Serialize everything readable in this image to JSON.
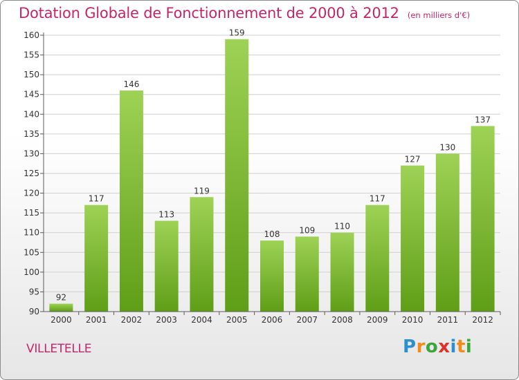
{
  "title": "Dotation Globale de Fonctionnement de 2000 à 2012",
  "unit_note": "(en milliers d'€)",
  "place": "VILLETELLE",
  "logo": {
    "text": "Proxiti",
    "letters": [
      "P",
      "r",
      "o",
      "x",
      "i",
      "t",
      "i"
    ],
    "colors": [
      "#2d8fd0",
      "#f28a1c",
      "#3ca63c",
      "#e0302a",
      "#2d8fd0",
      "#f28a1c",
      "#3ca63c"
    ]
  },
  "colors": {
    "title": "#c3256b",
    "bar_top": "#9ed256",
    "bar_bottom": "#5f9e17",
    "grid": "#cfcfcf",
    "axis": "#5a5a5a",
    "label": "#333333"
  },
  "chart_data": {
    "type": "bar",
    "categories": [
      "2000",
      "2001",
      "2002",
      "2003",
      "2004",
      "2005",
      "2006",
      "2007",
      "2008",
      "2009",
      "2010",
      "2011",
      "2012"
    ],
    "values": [
      92,
      117,
      146,
      113,
      119,
      159,
      108,
      109,
      110,
      117,
      127,
      130,
      137
    ],
    "ylim": [
      90,
      160
    ],
    "yticks": [
      90,
      95,
      100,
      105,
      110,
      115,
      120,
      125,
      130,
      135,
      140,
      145,
      150,
      155,
      160
    ],
    "grid": true,
    "data_labels": true
  }
}
